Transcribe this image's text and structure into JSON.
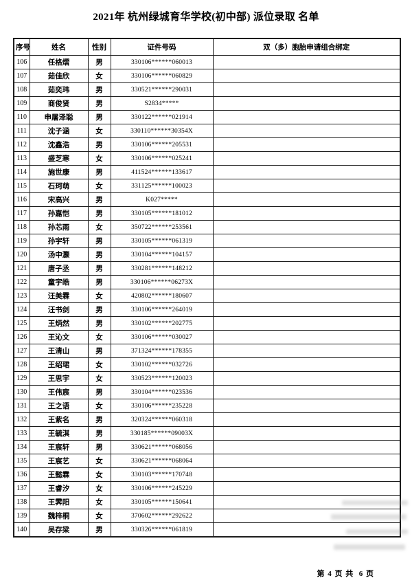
{
  "title": "2021年 杭州绿城育华学校(初中部) 派位录取 名单",
  "table": {
    "headers": [
      "序号",
      "姓名",
      "性别",
      "证件号码",
      "双（多）胞胎申请组合绑定"
    ],
    "rows": [
      [
        "106",
        "任格熠",
        "男",
        "330106******060013",
        ""
      ],
      [
        "107",
        "茹佳欣",
        "女",
        "330106******060829",
        ""
      ],
      [
        "108",
        "茹奕玮",
        "男",
        "330521******290031",
        ""
      ],
      [
        "109",
        "商俊贤",
        "男",
        "S2834*****",
        ""
      ],
      [
        "110",
        "申屠泽聪",
        "男",
        "330122******021914",
        ""
      ],
      [
        "111",
        "沈子涵",
        "女",
        "330110******30354X",
        ""
      ],
      [
        "112",
        "沈鑫浩",
        "男",
        "330106******205531",
        ""
      ],
      [
        "113",
        "盛芝寒",
        "女",
        "330106******025241",
        ""
      ],
      [
        "114",
        "施世康",
        "男",
        "411524******133617",
        ""
      ],
      [
        "115",
        "石珂萌",
        "女",
        "331125******100023",
        ""
      ],
      [
        "116",
        "宋高兴",
        "男",
        "K027*****",
        ""
      ],
      [
        "117",
        "孙嘉恺",
        "男",
        "330105******181012",
        ""
      ],
      [
        "118",
        "孙芯雨",
        "女",
        "350722******253561",
        ""
      ],
      [
        "119",
        "孙宇轩",
        "男",
        "330105******061319",
        ""
      ],
      [
        "120",
        "汤中灏",
        "男",
        "330104******104157",
        ""
      ],
      [
        "121",
        "唐子丞",
        "男",
        "330281******148212",
        ""
      ],
      [
        "122",
        "童宇皓",
        "男",
        "330106******06273X",
        ""
      ],
      [
        "123",
        "汪美霖",
        "女",
        "420802******180607",
        ""
      ],
      [
        "124",
        "汪书剑",
        "男",
        "330106******264019",
        ""
      ],
      [
        "125",
        "王炳然",
        "男",
        "330102******202775",
        ""
      ],
      [
        "126",
        "王沁文",
        "女",
        "330106******030027",
        ""
      ],
      [
        "127",
        "王清山",
        "男",
        "371324******178355",
        ""
      ],
      [
        "128",
        "王绍珺",
        "女",
        "330102******032726",
        ""
      ],
      [
        "129",
        "王思宇",
        "女",
        "330523******120023",
        ""
      ],
      [
        "130",
        "王伟宸",
        "男",
        "330104******023536",
        ""
      ],
      [
        "131",
        "王之语",
        "女",
        "330106******235228",
        ""
      ],
      [
        "132",
        "王紫名",
        "男",
        "320324******060318",
        ""
      ],
      [
        "133",
        "王毓淇",
        "男",
        "330185******09003X",
        ""
      ],
      [
        "134",
        "王宸轩",
        "男",
        "330621******068056",
        ""
      ],
      [
        "135",
        "王宸艺",
        "女",
        "330621******068064",
        ""
      ],
      [
        "136",
        "王懿霖",
        "女",
        "330103******170748",
        ""
      ],
      [
        "137",
        "王睿汐",
        "女",
        "330106******245229",
        ""
      ],
      [
        "138",
        "王霁阳",
        "女",
        "330105******150641",
        ""
      ],
      [
        "139",
        "魏梓桐",
        "女",
        "370602******292622",
        ""
      ],
      [
        "140",
        "吴存梁",
        "男",
        "330326******061819",
        ""
      ]
    ]
  },
  "footer": {
    "page_indicator": "第 4 页 共  6 页"
  }
}
